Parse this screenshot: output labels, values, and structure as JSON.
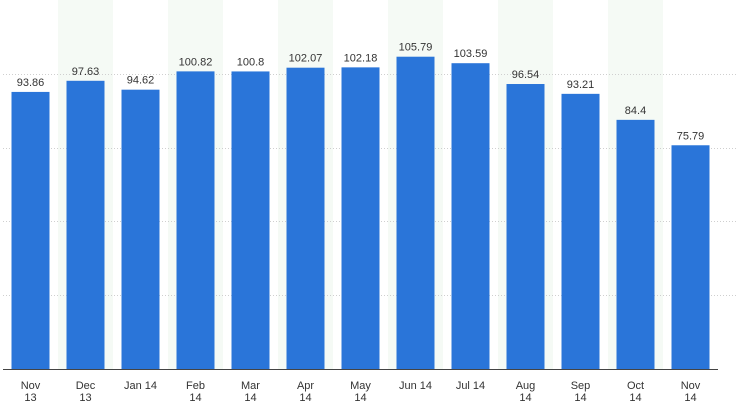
{
  "chart_data": {
    "type": "bar",
    "categories": [
      [
        "Nov",
        "13"
      ],
      [
        "Dec",
        "13"
      ],
      [
        "Jan 14"
      ],
      [
        "Feb",
        "14"
      ],
      [
        "Mar",
        "14"
      ],
      [
        "Apr",
        "14"
      ],
      [
        "May",
        "14"
      ],
      [
        "Jun 14"
      ],
      [
        "Jul 14"
      ],
      [
        "Aug",
        "14"
      ],
      [
        "Sep",
        "14"
      ],
      [
        "Oct",
        "14"
      ],
      [
        "Nov",
        "14"
      ]
    ],
    "values": [
      93.86,
      97.63,
      94.62,
      100.82,
      100.8,
      102.07,
      102.18,
      105.79,
      103.59,
      96.54,
      93.21,
      84.4,
      75.79
    ],
    "value_labels": [
      "93.86",
      "97.63",
      "94.62",
      "100.82",
      "100.8",
      "102.07",
      "102.18",
      "105.79",
      "103.59",
      "96.54",
      "93.21",
      "84.4",
      "75.79"
    ],
    "title": "",
    "xlabel": "",
    "ylabel": "",
    "ylim": [
      0,
      125
    ],
    "grid": true,
    "legend": "none",
    "bar_color": "#2a75d9",
    "band_color": "#f5faf5"
  }
}
